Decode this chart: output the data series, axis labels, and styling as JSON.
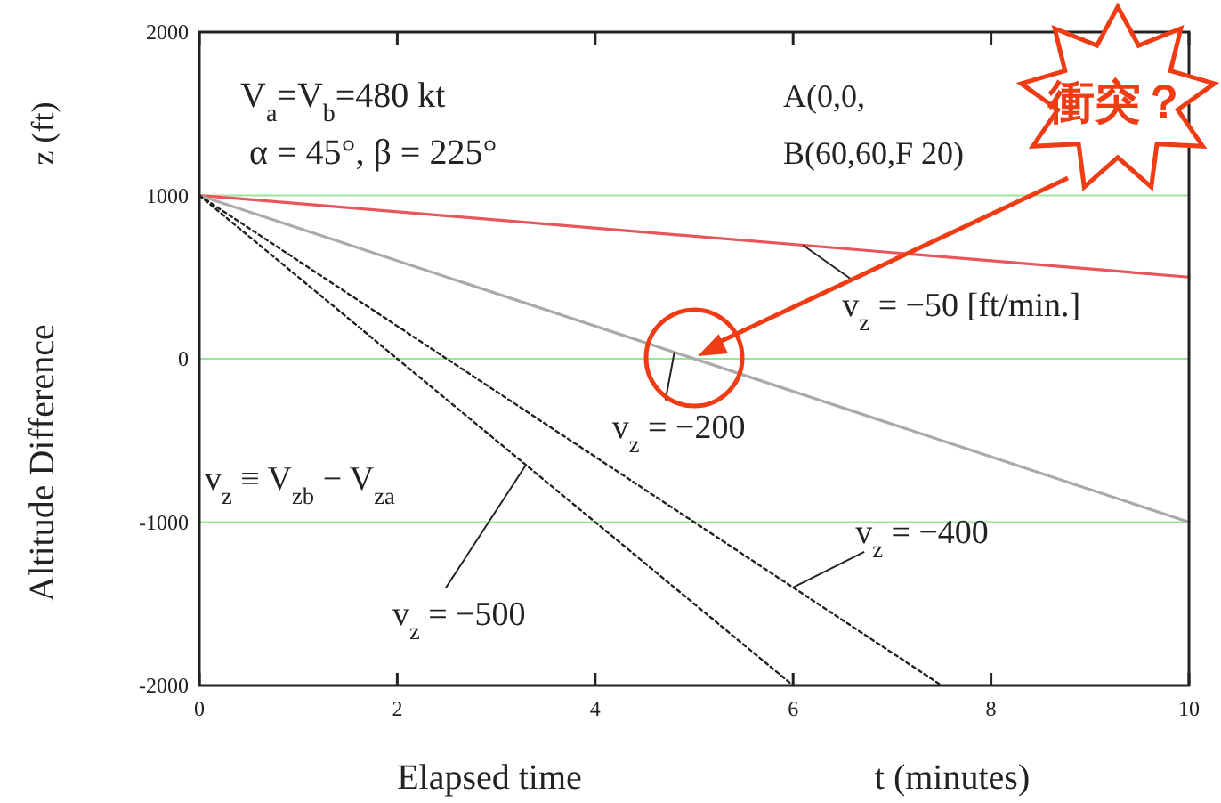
{
  "chart_data": {
    "type": "line",
    "xlabel": "Elapsed time",
    "ylabel": "Altitude Difference",
    "xlim": [
      0,
      10
    ],
    "xticks": [
      0,
      2,
      4,
      6,
      8,
      10
    ],
    "ylim": [
      -2000,
      2000
    ],
    "yticks": [
      -2000,
      -1000,
      0,
      1000,
      2000
    ],
    "grid": "y",
    "series": [
      {
        "x": [
          0,
          10
        ],
        "values": [
          1000,
          500
        ],
        "color": "#e8555a",
        "line_style": "solid"
      },
      {
        "x": [
          0,
          10
        ],
        "values": [
          1000,
          -1000
        ],
        "color": "#aaaaaa",
        "line_style": "solid"
      },
      {
        "x": [
          0,
          7.5
        ],
        "values": [
          1000,
          -2000
        ],
        "color": "#222222",
        "line_style": "dotted"
      },
      {
        "x": [
          0,
          6
        ],
        "values": [
          1000,
          -2000
        ],
        "color": "#222222",
        "line_style": "dotted"
      }
    ],
    "annotations": [
      "V$_{a}$=V$_{b}$=480 kt",
      "α = 45°, β = 225°",
      "A(0,0,",
      "B(60,60,F 20)",
      {
        "text": "v$_{z}$ = −50 [ft/min.]",
        "x": 6.1,
        "y": 695
      },
      {
        "text": "v$_{z}$ = −200",
        "x": 4.8,
        "y": 40
      },
      {
        "text": "v$_{z}$ = −400",
        "x": 6,
        "y": -1400
      },
      {
        "text": "v$_{z}$ = −500",
        "x": 3.3,
        "y": -650
      },
      "v$_{z}$ ≡ V$_{zb}$ − V$_{za}$",
      "z (ft)",
      "t (minutes)",
      "衝突？"
    ]
  }
}
